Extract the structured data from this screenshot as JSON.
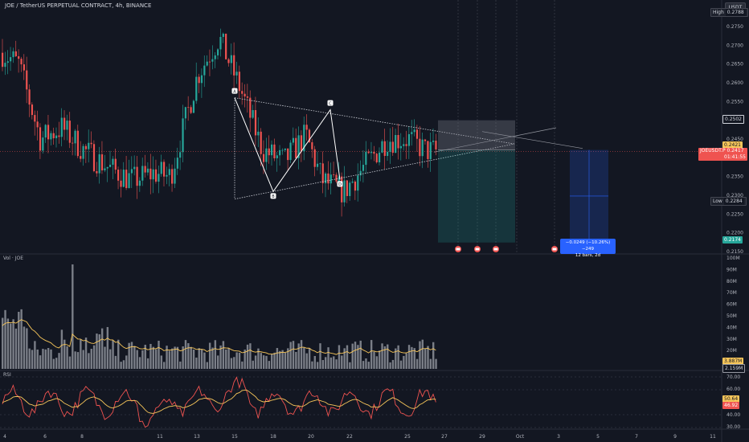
{
  "header": {
    "title": "JOE / TetherUS PERPETUAL CONTRACT, 4h, BINANCE",
    "currency_button": "USDT"
  },
  "price_axis": {
    "ticks": [
      "0.2750",
      "0.2700",
      "0.2650",
      "0.2600",
      "0.2550",
      "0.2500",
      "0.2450",
      "0.2400",
      "0.2350",
      "0.2300",
      "0.2250",
      "0.2200",
      "0.2150"
    ],
    "tags": {
      "high_label": "High",
      "high_value": "0.2788",
      "level_2502": "0.2502",
      "price_2421": "0.2421",
      "symbol": "JOEUSDT.P",
      "last_price": "0.2417",
      "countdown": "01:41:55",
      "low_label": "Low",
      "low_value": "0.2284",
      "target": "0.2174"
    }
  },
  "pattern_labels": [
    "A",
    "B",
    "C",
    "D"
  ],
  "measure_box": {
    "line1": "−0.0249 (−10.26%) −249",
    "line2": "12 bars, 2d"
  },
  "volume_pane": {
    "label": "Vol · JOE",
    "ticks": [
      "100M",
      "90M",
      "80M",
      "70M",
      "60M",
      "50M",
      "40M",
      "30M",
      "20M"
    ],
    "tag_ma": "3.887M",
    "tag_vol": "2.159M"
  },
  "rsi_pane": {
    "label": "RSI",
    "ticks": [
      "70.00",
      "60.00",
      "40.00",
      "30.00"
    ],
    "tag_ma": "50.64",
    "tag_rsi": "46.92"
  },
  "time_axis": {
    "labels": [
      "4",
      "6",
      "8",
      "11",
      "13",
      "15",
      "18",
      "20",
      "22",
      "25",
      "27",
      "29",
      "Oct",
      "3",
      "5",
      "7",
      "9",
      "11"
    ]
  },
  "colors": {
    "background": "#131722",
    "up": "#26a69a",
    "down": "#ef5350",
    "volume": "#9598a1",
    "volume_ma": "#f7c65a",
    "rsi": "#ef5350",
    "rsi_ma": "#f7c65a",
    "measure": "#2962ff"
  }
}
